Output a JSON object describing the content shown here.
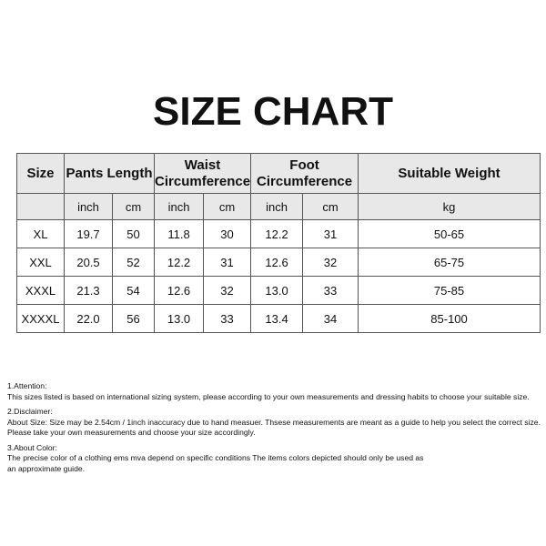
{
  "title": "SIZE CHART",
  "table": {
    "headers": [
      "Size",
      "Pants Length",
      "Waist Circumference",
      "Foot Circumference",
      "Suitable Weight"
    ],
    "waist_l1": "Waist",
    "waist_l2": "Circumference",
    "foot_l1": "Foot",
    "foot_l2": "Circumference",
    "units": [
      "",
      "inch",
      "cm",
      "inch",
      "cm",
      "inch",
      "cm",
      "kg"
    ],
    "rows": [
      [
        "XL",
        "19.7",
        "50",
        "11.8",
        "30",
        "12.2",
        "31",
        "50-65"
      ],
      [
        "XXL",
        "20.5",
        "52",
        "12.2",
        "31",
        "12.6",
        "32",
        "65-75"
      ],
      [
        "XXXL",
        "21.3",
        "54",
        "12.6",
        "32",
        "13.0",
        "33",
        "75-85"
      ],
      [
        "XXXXL",
        "22.0",
        "56",
        "13.0",
        "33",
        "13.4",
        "34",
        "85-100"
      ]
    ]
  },
  "notes": [
    {
      "heading": "1.Attention:",
      "lines": [
        "This sizes listed is based on international sizing system, please according to your own measurements and dressing habits to choose your suitable size."
      ]
    },
    {
      "heading": "2.Disclaimer:",
      "lines": [
        "About Size: Size may be 2.54cm / 1inch inaccuracy due to hand measuer. Thsese measurements are meant as a guide to help you select the correct size.",
        "Please take your own measurements and choose your size accordingly."
      ]
    },
    {
      "heading": "3.About Color:",
      "lines": [
        "The precise color of a clothing ems mva depend on specific conditions The items colors depicted should only be used as",
        "an approximate guide."
      ]
    }
  ]
}
